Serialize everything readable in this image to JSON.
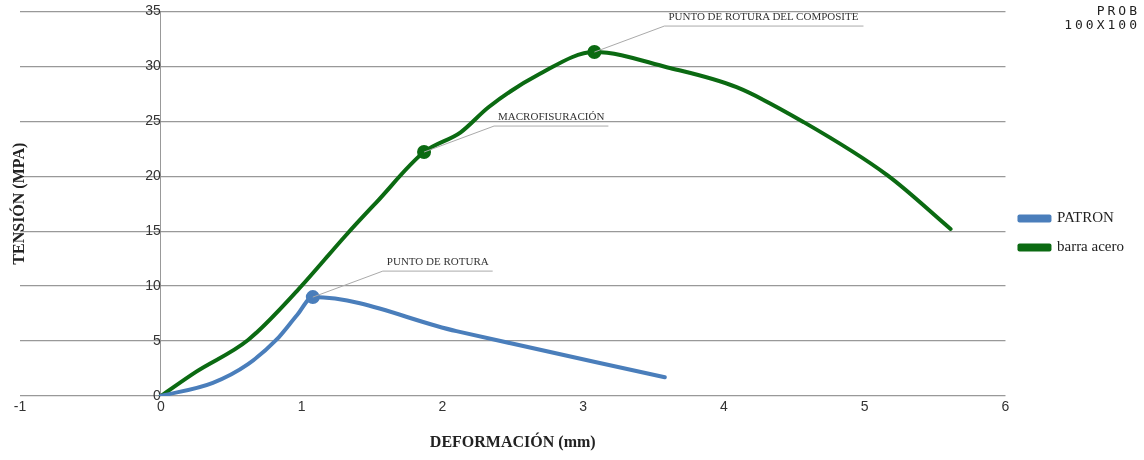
{
  "chart_data": {
    "type": "line",
    "xlabel": "DEFORMACIÓN (mm)",
    "ylabel": "TENSIÓN (MPA)",
    "xlim": [
      -1,
      6
    ],
    "xticks": [
      -1,
      0,
      1,
      2,
      3,
      4,
      5,
      6
    ],
    "ylim": [
      0,
      35
    ],
    "yticks": [
      0,
      5,
      10,
      15,
      20,
      25,
      30,
      35
    ],
    "grid": "y",
    "legend": "right",
    "series": [
      {
        "name": "PATRON",
        "color": "#4a7ebb",
        "x": [
          0,
          0.37,
          0.62,
          0.82,
          0.97,
          1.08,
          2.1,
          3.58
        ],
        "values": [
          0,
          1.2,
          2.9,
          5.1,
          7.4,
          9.0,
          5.9,
          1.7
        ]
      },
      {
        "name": "barra acero",
        "color": "#0b6a12",
        "x": [
          0,
          0.25,
          0.62,
          0.97,
          1.32,
          1.53,
          1.87,
          2.13,
          2.33,
          2.69,
          3.08,
          3.6,
          4.09,
          4.57,
          5.16,
          5.61
        ],
        "values": [
          0,
          2.2,
          5.1,
          9.6,
          14.7,
          17.6,
          22.2,
          24.0,
          26.3,
          29.3,
          31.3,
          29.9,
          28.1,
          24.9,
          20.1,
          15.2
        ]
      }
    ],
    "annotations": [
      {
        "text": "PUNTO DE ROTURA",
        "x": 1.08,
        "y": 9.0
      },
      {
        "text": "MACROFISURACIÓN",
        "x": 1.87,
        "y": 22.2
      },
      {
        "text": "PUNTO DE ROTURA DEL COMPOSITE",
        "x": 3.08,
        "y": 31.3
      },
      "PROB",
      "100X100"
    ]
  }
}
